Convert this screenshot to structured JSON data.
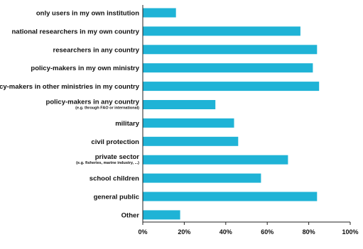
{
  "chart_data": {
    "type": "bar",
    "orientation": "horizontal",
    "categories": [
      {
        "label": "only users in my own institution",
        "sub": ""
      },
      {
        "label": "national researchers in my own country",
        "sub": ""
      },
      {
        "label": "researchers in any country",
        "sub": ""
      },
      {
        "label": "policy-makers in my own ministry",
        "sub": ""
      },
      {
        "label": "policy-makers in other ministries in my country",
        "sub": ""
      },
      {
        "label": "policy-makers in any country",
        "sub": "(e.g. through FAO or international)"
      },
      {
        "label": "military",
        "sub": ""
      },
      {
        "label": "civil protection",
        "sub": ""
      },
      {
        "label": "private sector",
        "sub": "(e.g. fisheries, marine industry, ...)"
      },
      {
        "label": "school children",
        "sub": ""
      },
      {
        "label": "general public",
        "sub": ""
      },
      {
        "label": "Other",
        "sub": ""
      }
    ],
    "values": [
      16,
      76,
      84,
      82,
      85,
      35,
      44,
      46,
      70,
      57,
      84,
      18
    ],
    "xlim": [
      0,
      100
    ],
    "xticks": [
      "0%",
      "20%",
      "40%",
      "60%",
      "80%",
      "100%"
    ],
    "bar_color": "#1fb3d6",
    "grid": false
  }
}
